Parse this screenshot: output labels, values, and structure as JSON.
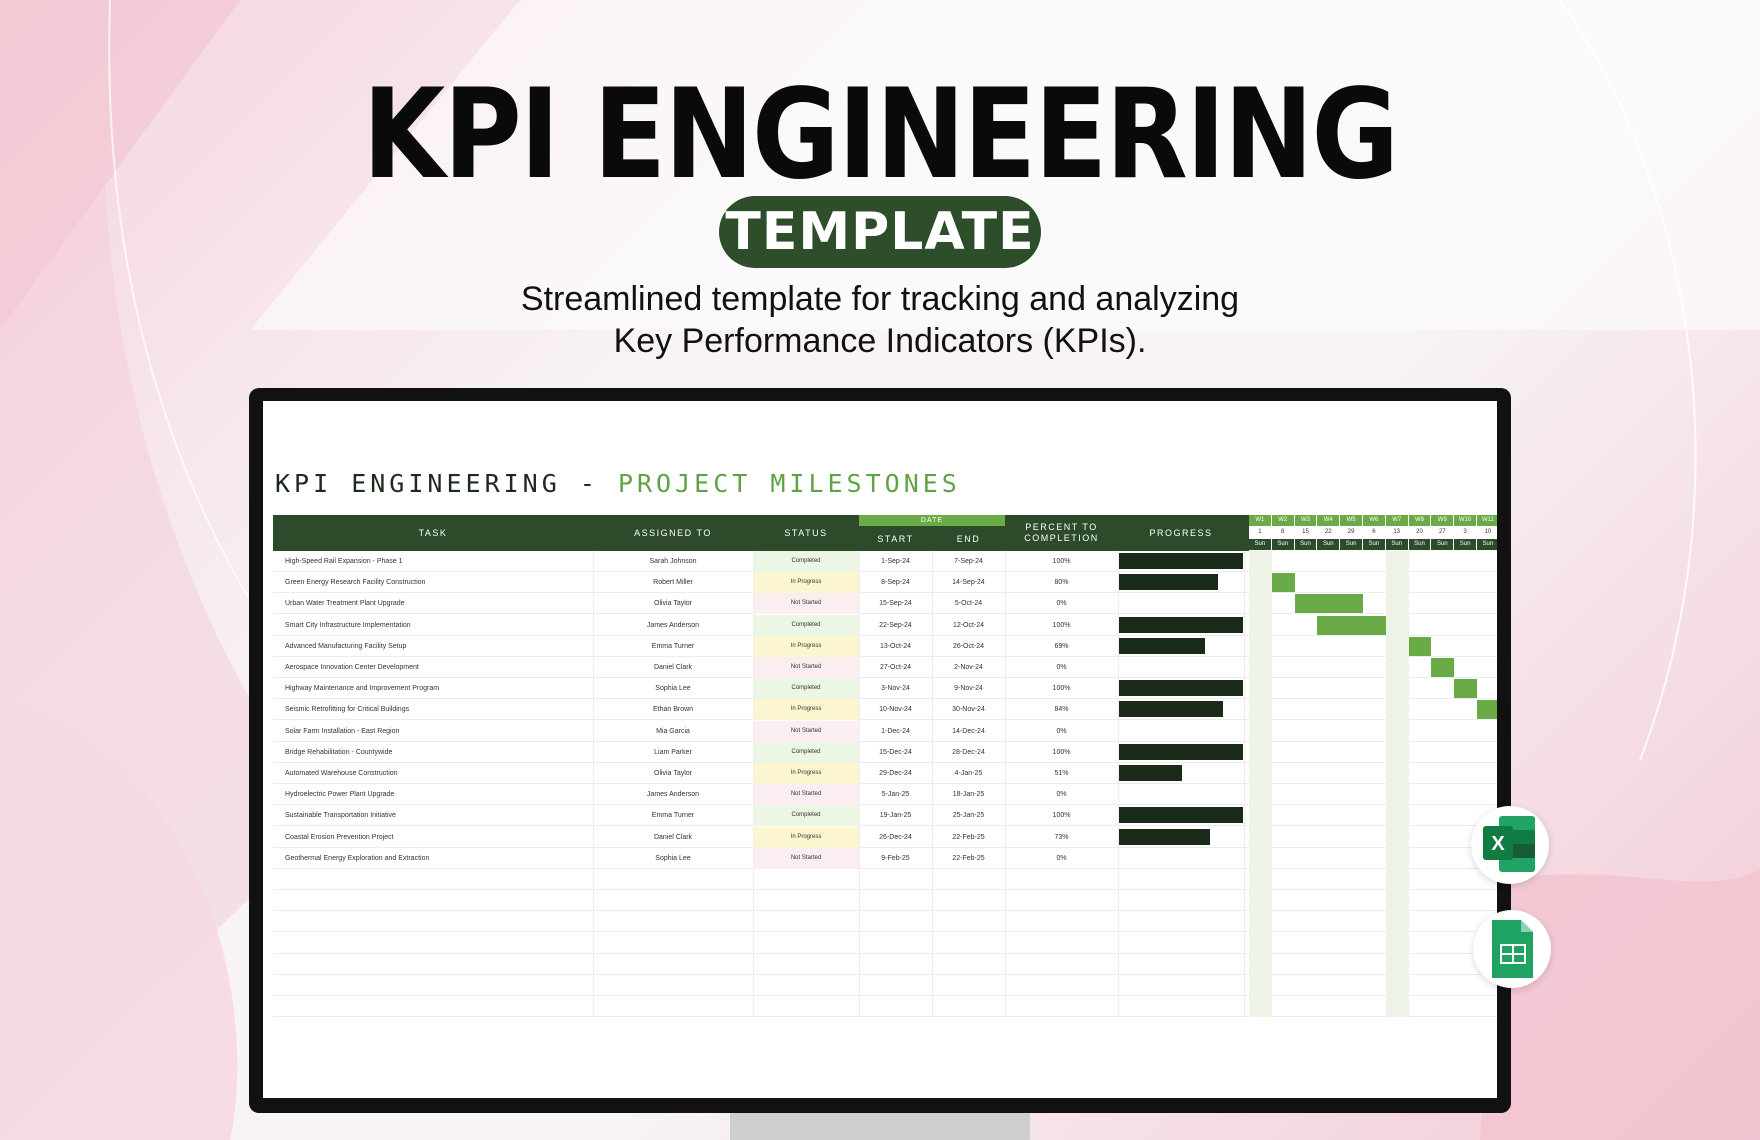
{
  "hero": {
    "title": "KPI ENGINEERING",
    "pill": "TEMPLATE",
    "subtitle_line1": "Streamlined template for tracking and analyzing",
    "subtitle_line2": "Key Performance Indicators (KPIs)."
  },
  "sheet": {
    "title_part1": "KPI ENGINEERING - ",
    "title_part2": "PROJECT MILESTONES",
    "headers": {
      "task": "TASK",
      "assigned": "ASSIGNED TO",
      "status": "STATUS",
      "date": "DATE",
      "start": "START",
      "end": "END",
      "percent_line1": "PERCENT TO",
      "percent_line2": "COMPLETION",
      "progress": "PROGRESS"
    },
    "weeks": [
      "W1",
      "W2",
      "W3",
      "W4",
      "W5",
      "W6",
      "W7",
      "W8",
      "W9",
      "W10",
      "W11"
    ],
    "week_days": [
      "1",
      "8",
      "15",
      "22",
      "29",
      "6",
      "13",
      "20",
      "27",
      "3",
      "10"
    ],
    "week_dow": [
      "Sun",
      "Sun",
      "Sun",
      "Sun",
      "Sun",
      "Sun",
      "Sun",
      "Sun",
      "Sun",
      "Sun",
      "Sun"
    ],
    "rows": [
      {
        "task": "High-Speed Rail Expansion - Phase 1",
        "assigned": "Sarah Johnson",
        "status": "Completed",
        "start": "1-Sep-24",
        "end": "7-Sep-24",
        "pct": "100%",
        "progress": 1.0,
        "gantt": [
          0,
          1
        ]
      },
      {
        "task": "Green Energy Research Facility Construction",
        "assigned": "Robert Miller",
        "status": "In Progress",
        "start": "8-Sep-24",
        "end": "14-Sep-24",
        "pct": "80%",
        "progress": 0.8,
        "gantt": [
          1,
          1
        ]
      },
      {
        "task": "Urban Water Treatment Plant Upgrade",
        "assigned": "Olivia Taylor",
        "status": "Not Started",
        "start": "15-Sep-24",
        "end": "5-Oct-24",
        "pct": "0%",
        "progress": 0,
        "gantt": [
          2,
          3
        ]
      },
      {
        "task": "Smart City Infrastructure Implementation",
        "assigned": "James Anderson",
        "status": "Completed",
        "start": "22-Sep-24",
        "end": "12-Oct-24",
        "pct": "100%",
        "progress": 1.0,
        "gantt": [
          3,
          3
        ]
      },
      {
        "task": "Advanced Manufacturing Facility Setup",
        "assigned": "Emma Turner",
        "status": "In Progress",
        "start": "13-Oct-24",
        "end": "26-Oct-24",
        "pct": "69%",
        "progress": 0.69,
        "gantt": [
          6,
          2
        ]
      },
      {
        "task": "Aerospace Innovation Center Development",
        "assigned": "Daniel Clark",
        "status": "Not Started",
        "start": "27-Oct-24",
        "end": "2-Nov-24",
        "pct": "0%",
        "progress": 0,
        "gantt": [
          8,
          1
        ]
      },
      {
        "task": "Highway Maintenance and Improvement Program",
        "assigned": "Sophia Lee",
        "status": "Completed",
        "start": "3-Nov-24",
        "end": "9-Nov-24",
        "pct": "100%",
        "progress": 1.0,
        "gantt": [
          9,
          1
        ]
      },
      {
        "task": "Seismic Retrofitting for Critical Buildings",
        "assigned": "Ethan Brown",
        "status": "In Progress",
        "start": "10-Nov-24",
        "end": "30-Nov-24",
        "pct": "84%",
        "progress": 0.84,
        "gantt": [
          10,
          1
        ]
      },
      {
        "task": "Solar Farm Installation - East Region",
        "assigned": "Mia Garcia",
        "status": "Not Started",
        "start": "1-Dec-24",
        "end": "14-Dec-24",
        "pct": "0%",
        "progress": 0,
        "gantt": []
      },
      {
        "task": "Bridge Rehabilitation - Countywide",
        "assigned": "Liam Parker",
        "status": "Completed",
        "start": "15-Dec-24",
        "end": "28-Dec-24",
        "pct": "100%",
        "progress": 1.0,
        "gantt": []
      },
      {
        "task": "Automated Warehouse Construction",
        "assigned": "Olivia Taylor",
        "status": "In Progress",
        "start": "29-Dec-24",
        "end": "4-Jan-25",
        "pct": "51%",
        "progress": 0.51,
        "gantt": []
      },
      {
        "task": "Hydroelectric Power Plant Upgrade",
        "assigned": "James Anderson",
        "status": "Not Started",
        "start": "5-Jan-25",
        "end": "18-Jan-25",
        "pct": "0%",
        "progress": 0,
        "gantt": []
      },
      {
        "task": "Sustainable Transportation Initiative",
        "assigned": "Emma Turner",
        "status": "Completed",
        "start": "19-Jan-25",
        "end": "25-Jan-25",
        "pct": "100%",
        "progress": 1.0,
        "gantt": []
      },
      {
        "task": "Coastal Erosion Prevention Project",
        "assigned": "Daniel Clark",
        "status": "In Progress",
        "start": "26-Dec-24",
        "end": "22-Feb-25",
        "pct": "73%",
        "progress": 0.73,
        "gantt": []
      },
      {
        "task": "Geothermal Energy Exploration and Extraction",
        "assigned": "Sophia Lee",
        "status": "Not Started",
        "start": "9-Feb-25",
        "end": "22-Feb-25",
        "pct": "0%",
        "progress": 0,
        "gantt": []
      }
    ],
    "colors": {
      "header": "#2d4b2b",
      "accent": "#6aaa47",
      "completed_bg": "#ecf6e4",
      "inprogress_bg": "#fbf6d0",
      "notstarted_bg": "#fbeef0",
      "progress_bar": "#1a2c19"
    }
  },
  "icons": {
    "excel": "excel-icon",
    "sheets": "google-sheets-icon"
  }
}
